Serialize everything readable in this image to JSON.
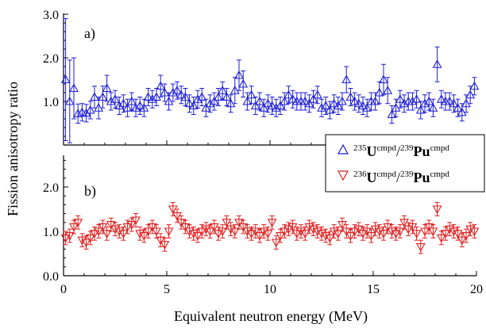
{
  "colors": {
    "series1": "#1c1cd8",
    "series2": "#e01c1c",
    "axis": "#000000"
  },
  "chart_data": [
    {
      "type": "scatter",
      "panel_label": "a)",
      "xlabel": "Equivalent neutron energy (MeV)",
      "ylabel": "Fission anisotropy ratio",
      "xlim": [
        0,
        20
      ],
      "ylim": [
        0.0,
        3.0
      ],
      "xticks": [
        "0",
        "5",
        "10",
        "15",
        "20"
      ],
      "yticks": [
        "1.0",
        "2.0",
        "3.0"
      ],
      "grid": false,
      "legend_position": "bottom-right",
      "series": [
        {
          "name_sup1": "235",
          "name_el1": "U",
          "name_sup2": "cmpd",
          "name_el2": "Pu",
          "name_sup3": "239",
          "name_sup4": "cmpd",
          "marker": "triangle-up",
          "color": "#1c1cd8",
          "x": [
            0.1,
            0.3,
            0.5,
            0.7,
            0.9,
            1.1,
            1.3,
            1.5,
            1.7,
            1.9,
            2.1,
            2.3,
            2.5,
            2.7,
            2.9,
            3.1,
            3.3,
            3.5,
            3.7,
            3.9,
            4.1,
            4.3,
            4.5,
            4.7,
            4.9,
            5.1,
            5.3,
            5.5,
            5.7,
            5.9,
            6.1,
            6.3,
            6.5,
            6.7,
            6.9,
            7.1,
            7.3,
            7.5,
            7.7,
            7.9,
            8.1,
            8.3,
            8.5,
            8.7,
            8.9,
            9.1,
            9.3,
            9.5,
            9.7,
            9.9,
            10.1,
            10.3,
            10.5,
            10.7,
            10.9,
            11.1,
            11.3,
            11.5,
            11.7,
            11.9,
            12.1,
            12.3,
            12.5,
            12.7,
            12.9,
            13.1,
            13.3,
            13.5,
            13.7,
            13.9,
            14.1,
            14.3,
            14.5,
            14.7,
            14.9,
            15.1,
            15.3,
            15.5,
            15.7,
            15.9,
            16.1,
            16.3,
            16.5,
            16.7,
            16.9,
            17.1,
            17.3,
            17.5,
            17.7,
            17.9,
            18.1,
            18.3,
            18.5,
            18.7,
            18.9,
            19.1,
            19.3,
            19.5,
            19.7,
            19.9
          ],
          "y": [
            1.5,
            1.0,
            1.3,
            0.72,
            0.75,
            0.73,
            0.8,
            1.1,
            0.85,
            1.1,
            1.3,
            1.0,
            1.05,
            0.9,
            0.95,
            0.85,
            1.0,
            0.85,
            0.9,
            0.85,
            1.1,
            1.05,
            1.1,
            1.35,
            1.2,
            1.0,
            1.2,
            1.25,
            1.15,
            1.1,
            0.95,
            0.9,
            1.05,
            1.1,
            0.85,
            0.95,
            1.0,
            1.1,
            1.25,
            1.1,
            0.95,
            1.25,
            1.6,
            1.4,
            1.0,
            1.15,
            0.9,
            1.0,
            0.85,
            0.95,
            0.9,
            0.85,
            0.9,
            1.0,
            1.15,
            1.05,
            1.0,
            1.0,
            1.0,
            0.95,
            1.05,
            1.15,
            0.85,
            0.9,
            0.8,
            0.95,
            0.9,
            1.0,
            1.5,
            1.1,
            1.0,
            0.95,
            0.9,
            0.85,
            1.0,
            1.0,
            1.2,
            1.5,
            1.25,
            0.7,
            0.85,
            1.05,
            0.95,
            1.0,
            1.0,
            1.05,
            0.8,
            0.95,
            1.0,
            0.85,
            1.85,
            1.05,
            1.0,
            1.0,
            0.95,
            0.85,
            0.75,
            0.95,
            1.15,
            1.35
          ],
          "err": [
            1.4,
            0.95,
            0.7,
            0.22,
            0.2,
            0.2,
            0.2,
            0.25,
            0.25,
            0.25,
            0.3,
            0.2,
            0.2,
            0.2,
            0.2,
            0.2,
            0.2,
            0.2,
            0.2,
            0.2,
            0.2,
            0.2,
            0.2,
            0.25,
            0.2,
            0.2,
            0.2,
            0.2,
            0.2,
            0.2,
            0.2,
            0.2,
            0.2,
            0.2,
            0.2,
            0.2,
            0.2,
            0.2,
            0.2,
            0.2,
            0.2,
            0.3,
            0.35,
            0.3,
            0.2,
            0.2,
            0.2,
            0.2,
            0.2,
            0.2,
            0.2,
            0.2,
            0.2,
            0.2,
            0.2,
            0.2,
            0.2,
            0.2,
            0.2,
            0.2,
            0.2,
            0.2,
            0.2,
            0.2,
            0.2,
            0.2,
            0.2,
            0.2,
            0.3,
            0.2,
            0.2,
            0.2,
            0.2,
            0.2,
            0.2,
            0.2,
            0.25,
            0.35,
            0.3,
            0.2,
            0.2,
            0.2,
            0.2,
            0.2,
            0.2,
            0.2,
            0.2,
            0.2,
            0.2,
            0.2,
            0.4,
            0.2,
            0.2,
            0.2,
            0.2,
            0.2,
            0.2,
            0.2,
            0.2,
            0.2
          ]
        }
      ]
    },
    {
      "type": "scatter",
      "panel_label": "b)",
      "xlabel": "Equivalent neutron energy (MeV)",
      "ylabel": "Fission anisotropy ratio",
      "xlim": [
        0,
        20
      ],
      "ylim": [
        0.0,
        3.0
      ],
      "xticks": [
        "0",
        "5",
        "10",
        "15",
        "20"
      ],
      "yticks": [
        "0.0",
        "1.0",
        "2.0"
      ],
      "grid": false,
      "legend_position": "top-right",
      "series": [
        {
          "name_sup1": "236",
          "name_el1": "U",
          "name_sup2": "cmpd",
          "name_el2": "Pu",
          "name_sup3": "239",
          "name_sup4": "cmpd",
          "marker": "triangle-down",
          "color": "#e01c1c",
          "x": [
            0.1,
            0.3,
            0.5,
            0.7,
            0.9,
            1.1,
            1.3,
            1.5,
            1.7,
            1.9,
            2.1,
            2.3,
            2.5,
            2.7,
            2.9,
            3.1,
            3.3,
            3.5,
            3.7,
            3.9,
            4.1,
            4.3,
            4.5,
            4.7,
            4.9,
            5.1,
            5.3,
            5.5,
            5.7,
            5.9,
            6.1,
            6.3,
            6.5,
            6.7,
            6.9,
            7.1,
            7.3,
            7.5,
            7.7,
            7.9,
            8.1,
            8.3,
            8.5,
            8.7,
            8.9,
            9.1,
            9.3,
            9.5,
            9.7,
            9.9,
            10.1,
            10.3,
            10.5,
            10.7,
            10.9,
            11.1,
            11.3,
            11.5,
            11.7,
            11.9,
            12.1,
            12.3,
            12.5,
            12.7,
            12.9,
            13.1,
            13.3,
            13.5,
            13.7,
            13.9,
            14.1,
            14.3,
            14.5,
            14.7,
            14.9,
            15.1,
            15.3,
            15.5,
            15.7,
            15.9,
            16.1,
            16.3,
            16.5,
            16.7,
            16.9,
            17.1,
            17.3,
            17.5,
            17.7,
            17.9,
            18.1,
            18.3,
            18.5,
            18.7,
            18.9,
            19.1,
            19.3,
            19.5,
            19.7,
            19.9
          ],
          "y": [
            0.85,
            0.9,
            1.1,
            1.2,
            0.8,
            0.75,
            0.85,
            0.95,
            1.0,
            1.1,
            0.95,
            1.15,
            1.05,
            1.0,
            0.95,
            1.1,
            1.15,
            1.25,
            0.95,
            0.9,
            1.0,
            1.1,
            1.0,
            0.8,
            0.7,
            1.0,
            1.5,
            1.35,
            1.2,
            1.1,
            1.0,
            0.95,
            0.9,
            1.0,
            1.05,
            1.0,
            1.1,
            0.95,
            1.0,
            1.2,
            1.05,
            1.0,
            1.2,
            1.1,
            1.0,
            0.95,
            1.0,
            0.9,
            1.0,
            0.95,
            1.2,
            0.75,
            0.9,
            1.0,
            1.05,
            1.1,
            0.95,
            1.0,
            0.95,
            1.1,
            1.05,
            1.0,
            0.95,
            0.9,
            0.85,
            1.0,
            0.95,
            1.15,
            1.0,
            0.9,
            1.0,
            1.05,
            0.95,
            1.0,
            0.9,
            1.05,
            1.0,
            0.95,
            1.1,
            1.0,
            0.95,
            1.0,
            1.2,
            1.05,
            1.1,
            0.95,
            0.65,
            1.0,
            1.1,
            1.0,
            1.5,
            0.85,
            0.95,
            1.05,
            1.0,
            0.95,
            0.8,
            0.9,
            1.05,
            1.0
          ],
          "err": [
            0.15,
            0.15,
            0.15,
            0.15,
            0.15,
            0.15,
            0.15,
            0.15,
            0.15,
            0.15,
            0.15,
            0.15,
            0.15,
            0.15,
            0.15,
            0.15,
            0.15,
            0.15,
            0.15,
            0.15,
            0.15,
            0.15,
            0.15,
            0.15,
            0.15,
            0.15,
            0.15,
            0.15,
            0.15,
            0.15,
            0.15,
            0.15,
            0.15,
            0.15,
            0.15,
            0.15,
            0.15,
            0.15,
            0.15,
            0.15,
            0.15,
            0.15,
            0.15,
            0.15,
            0.15,
            0.15,
            0.15,
            0.15,
            0.15,
            0.15,
            0.15,
            0.15,
            0.15,
            0.15,
            0.15,
            0.15,
            0.15,
            0.15,
            0.15,
            0.15,
            0.15,
            0.15,
            0.15,
            0.15,
            0.15,
            0.15,
            0.15,
            0.15,
            0.15,
            0.15,
            0.15,
            0.15,
            0.15,
            0.15,
            0.15,
            0.15,
            0.15,
            0.15,
            0.15,
            0.15,
            0.15,
            0.15,
            0.15,
            0.15,
            0.15,
            0.15,
            0.15,
            0.15,
            0.15,
            0.15,
            0.15,
            0.15,
            0.15,
            0.15,
            0.15,
            0.15,
            0.15,
            0.15,
            0.15,
            0.15
          ]
        }
      ]
    }
  ]
}
